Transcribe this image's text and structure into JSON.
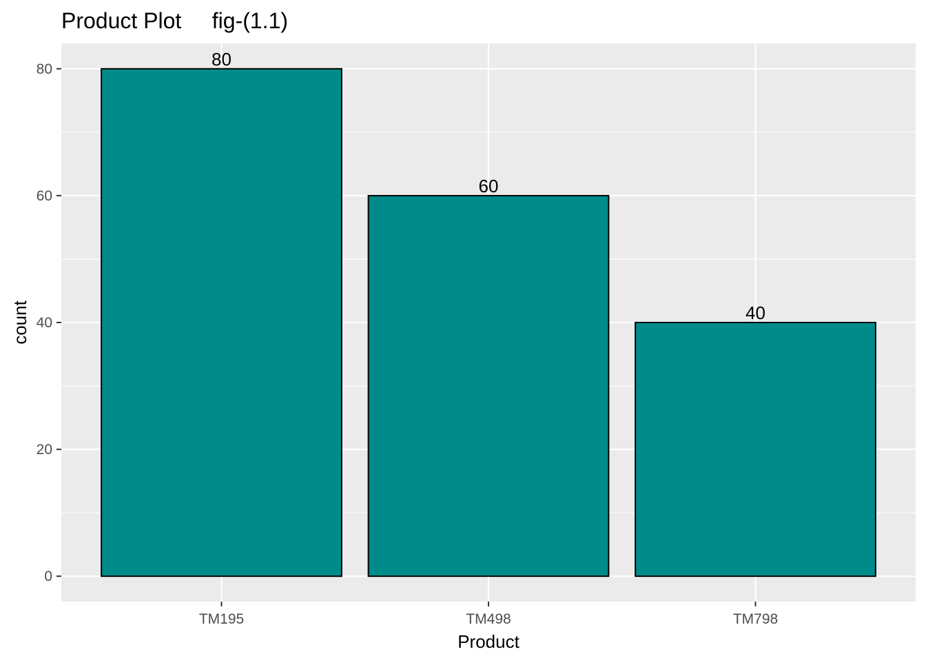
{
  "chart_data": {
    "type": "bar",
    "title": "Product Plot     fig-(1.1)",
    "xlabel": "Product",
    "ylabel": "count",
    "categories": [
      "TM195",
      "TM498",
      "TM798"
    ],
    "values": [
      80,
      60,
      40
    ],
    "data_labels": [
      "80",
      "60",
      "40"
    ],
    "ylim": [
      -4,
      84
    ],
    "yticks": [
      0,
      20,
      40,
      60,
      80
    ],
    "ytick_labels": [
      "0",
      "20",
      "40",
      "60",
      "80"
    ],
    "grid": true,
    "legend": "none",
    "colors": {
      "bar_fill": "#008B8B",
      "bar_outline": "#000000",
      "panel_background": "#EBEBEB",
      "grid_line": "#FFFFFF"
    }
  }
}
